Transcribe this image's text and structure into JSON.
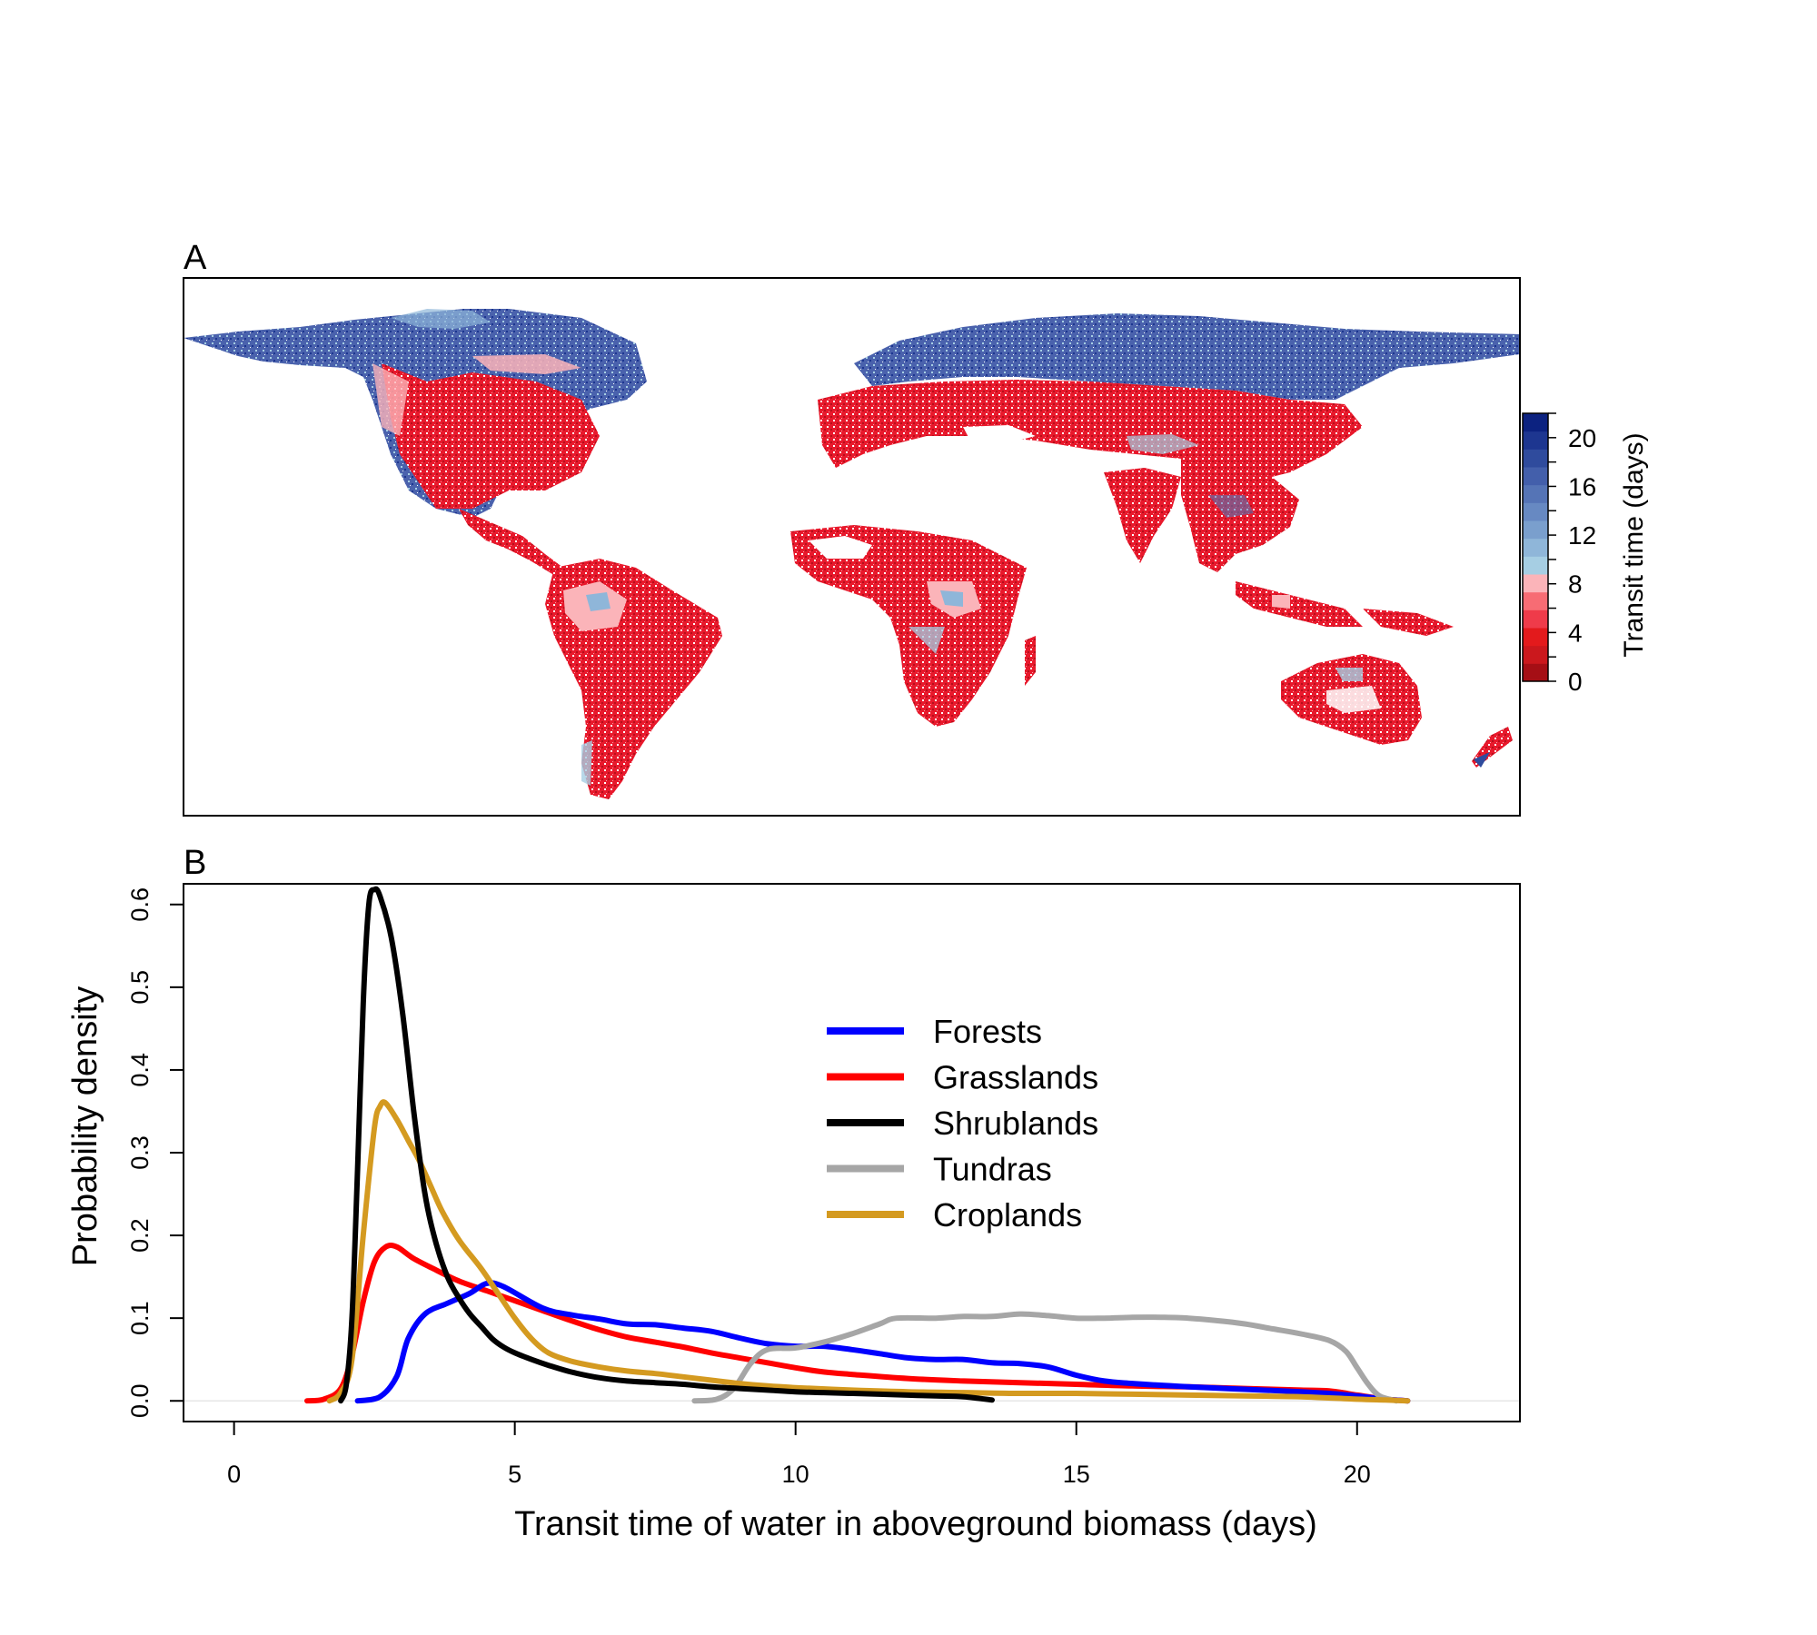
{
  "panel_a": {
    "label": "A",
    "colorbar": {
      "title": "Transit time (days)",
      "tick_labels": [
        "0",
        "4",
        "8",
        "12",
        "16",
        "20"
      ],
      "tick_values": [
        0,
        4,
        8,
        12,
        16,
        20
      ],
      "range": [
        0,
        22
      ],
      "bin_colors": [
        "#a50f15",
        "#cb181d",
        "#e31a1c",
        "#ef3b4a",
        "#f76c74",
        "#fbb4b9",
        "#a6cee3",
        "#8fb6d9",
        "#7a9fcd",
        "#6789c2",
        "#5574b6",
        "#435fab",
        "#2f4b9d",
        "#1d3690",
        "#0c2280"
      ],
      "scale_colors": {
        "low": "#a50f15",
        "mid": "#fbb4b9",
        "high": "#0c2280"
      }
    }
  },
  "panel_b": {
    "label": "B"
  },
  "chart_data": {
    "type": "line",
    "xlabel": "Transit time of water in aboveground biomass (days)",
    "ylabel": "Probability density",
    "xlim": [
      -0.9,
      22.9
    ],
    "ylim": [
      -0.025,
      0.625
    ],
    "x_ticks": [
      0,
      5,
      10,
      15,
      20
    ],
    "x_tick_labels": [
      "0",
      "5",
      "10",
      "15",
      "20"
    ],
    "y_ticks": [
      0.0,
      0.1,
      0.2,
      0.3,
      0.4,
      0.5,
      0.6
    ],
    "y_tick_labels": [
      "0.0",
      "0.1",
      "0.2",
      "0.3",
      "0.4",
      "0.5",
      "0.6"
    ],
    "legend_position": "upper-center",
    "series": [
      {
        "name": "Forests",
        "color": "#0000ff",
        "points": [
          [
            2.2,
            0.0
          ],
          [
            2.6,
            0.005
          ],
          [
            2.9,
            0.03
          ],
          [
            3.1,
            0.075
          ],
          [
            3.4,
            0.105
          ],
          [
            3.8,
            0.118
          ],
          [
            4.2,
            0.13
          ],
          [
            4.5,
            0.142
          ],
          [
            4.8,
            0.138
          ],
          [
            5.5,
            0.112
          ],
          [
            6,
            0.104
          ],
          [
            6.5,
            0.099
          ],
          [
            7,
            0.093
          ],
          [
            7.5,
            0.092
          ],
          [
            8,
            0.088
          ],
          [
            8.5,
            0.084
          ],
          [
            9,
            0.076
          ],
          [
            9.5,
            0.069
          ],
          [
            10,
            0.066
          ],
          [
            10.5,
            0.066
          ],
          [
            11,
            0.062
          ],
          [
            11.5,
            0.057
          ],
          [
            12,
            0.052
          ],
          [
            12.5,
            0.05
          ],
          [
            13,
            0.05
          ],
          [
            13.5,
            0.046
          ],
          [
            14,
            0.045
          ],
          [
            14.5,
            0.041
          ],
          [
            15,
            0.031
          ],
          [
            15.5,
            0.024
          ],
          [
            16,
            0.021
          ],
          [
            17,
            0.017
          ],
          [
            18,
            0.014
          ],
          [
            19,
            0.011
          ],
          [
            19.5,
            0.009
          ],
          [
            20,
            0.006
          ],
          [
            20.5,
            0.002
          ],
          [
            20.9,
            0.0
          ]
        ]
      },
      {
        "name": "Grasslands",
        "color": "#ff0000",
        "points": [
          [
            1.3,
            0.0
          ],
          [
            1.6,
            0.002
          ],
          [
            1.9,
            0.015
          ],
          [
            2.1,
            0.055
          ],
          [
            2.3,
            0.12
          ],
          [
            2.5,
            0.168
          ],
          [
            2.7,
            0.186
          ],
          [
            2.9,
            0.186
          ],
          [
            3.2,
            0.172
          ],
          [
            3.6,
            0.158
          ],
          [
            4,
            0.145
          ],
          [
            4.5,
            0.133
          ],
          [
            5,
            0.121
          ],
          [
            5.5,
            0.109
          ],
          [
            6,
            0.097
          ],
          [
            6.5,
            0.086
          ],
          [
            7,
            0.077
          ],
          [
            7.5,
            0.071
          ],
          [
            8,
            0.065
          ],
          [
            8.5,
            0.058
          ],
          [
            9,
            0.052
          ],
          [
            9.5,
            0.046
          ],
          [
            10,
            0.04
          ],
          [
            10.5,
            0.035
          ],
          [
            11,
            0.032
          ],
          [
            12,
            0.027
          ],
          [
            13,
            0.024
          ],
          [
            14,
            0.022
          ],
          [
            15,
            0.02
          ],
          [
            16,
            0.018
          ],
          [
            17,
            0.017
          ],
          [
            18,
            0.015
          ],
          [
            19,
            0.013
          ],
          [
            19.5,
            0.012
          ],
          [
            20,
            0.007
          ],
          [
            20.5,
            0.002
          ],
          [
            20.9,
            0.0
          ]
        ]
      },
      {
        "name": "Shrublands",
        "color": "#000000",
        "points": [
          [
            1.9,
            0.0
          ],
          [
            2.0,
            0.02
          ],
          [
            2.1,
            0.1
          ],
          [
            2.2,
            0.28
          ],
          [
            2.3,
            0.48
          ],
          [
            2.4,
            0.6
          ],
          [
            2.5,
            0.618
          ],
          [
            2.6,
            0.61
          ],
          [
            2.8,
            0.56
          ],
          [
            3,
            0.47
          ],
          [
            3.2,
            0.35
          ],
          [
            3.4,
            0.25
          ],
          [
            3.6,
            0.19
          ],
          [
            3.8,
            0.15
          ],
          [
            4,
            0.125
          ],
          [
            4.2,
            0.105
          ],
          [
            4.4,
            0.09
          ],
          [
            4.6,
            0.075
          ],
          [
            4.8,
            0.065
          ],
          [
            5,
            0.058
          ],
          [
            5.3,
            0.05
          ],
          [
            5.6,
            0.043
          ],
          [
            6,
            0.035
          ],
          [
            6.5,
            0.028
          ],
          [
            7,
            0.024
          ],
          [
            7.5,
            0.022
          ],
          [
            8,
            0.02
          ],
          [
            8.5,
            0.017
          ],
          [
            9,
            0.015
          ],
          [
            9.5,
            0.013
          ],
          [
            10,
            0.011
          ],
          [
            10.5,
            0.01
          ],
          [
            11,
            0.009
          ],
          [
            11.5,
            0.008
          ],
          [
            12,
            0.007
          ],
          [
            12.5,
            0.006
          ],
          [
            13,
            0.005
          ],
          [
            13.5,
            0.001
          ]
        ]
      },
      {
        "name": "Tundras",
        "color": "#a6a6a6",
        "points": [
          [
            8.2,
            0.0
          ],
          [
            8.6,
            0.002
          ],
          [
            8.9,
            0.015
          ],
          [
            9.2,
            0.045
          ],
          [
            9.5,
            0.062
          ],
          [
            10,
            0.064
          ],
          [
            10.5,
            0.071
          ],
          [
            11,
            0.081
          ],
          [
            11.5,
            0.093
          ],
          [
            11.8,
            0.1
          ],
          [
            12.5,
            0.1
          ],
          [
            13,
            0.102
          ],
          [
            13.5,
            0.102
          ],
          [
            14,
            0.105
          ],
          [
            14.5,
            0.103
          ],
          [
            15,
            0.1
          ],
          [
            15.5,
            0.1
          ],
          [
            16,
            0.101
          ],
          [
            16.5,
            0.101
          ],
          [
            17,
            0.1
          ],
          [
            17.5,
            0.097
          ],
          [
            18,
            0.093
          ],
          [
            18.5,
            0.087
          ],
          [
            19,
            0.081
          ],
          [
            19.5,
            0.073
          ],
          [
            19.8,
            0.06
          ],
          [
            20.0,
            0.04
          ],
          [
            20.2,
            0.02
          ],
          [
            20.4,
            0.006
          ],
          [
            20.7,
            0.0
          ]
        ]
      },
      {
        "name": "Croplands",
        "color": "#d49a20",
        "points": [
          [
            1.7,
            0.0
          ],
          [
            1.9,
            0.01
          ],
          [
            2.1,
            0.05
          ],
          [
            2.3,
            0.2
          ],
          [
            2.5,
            0.33
          ],
          [
            2.6,
            0.356
          ],
          [
            2.7,
            0.36
          ],
          [
            2.9,
            0.34
          ],
          [
            3.1,
            0.315
          ],
          [
            3.3,
            0.29
          ],
          [
            3.5,
            0.26
          ],
          [
            3.7,
            0.23
          ],
          [
            4,
            0.195
          ],
          [
            4.4,
            0.16
          ],
          [
            4.7,
            0.13
          ],
          [
            5,
            0.1
          ],
          [
            5.3,
            0.075
          ],
          [
            5.6,
            0.058
          ],
          [
            6,
            0.048
          ],
          [
            6.5,
            0.041
          ],
          [
            7,
            0.036
          ],
          [
            7.5,
            0.033
          ],
          [
            8,
            0.029
          ],
          [
            8.5,
            0.025
          ],
          [
            9,
            0.021
          ],
          [
            9.5,
            0.018
          ],
          [
            10,
            0.016
          ],
          [
            11,
            0.013
          ],
          [
            12,
            0.011
          ],
          [
            13,
            0.01
          ],
          [
            14,
            0.009
          ],
          [
            15,
            0.009
          ],
          [
            16,
            0.008
          ],
          [
            17,
            0.007
          ],
          [
            18,
            0.006
          ],
          [
            19,
            0.005
          ],
          [
            20,
            0.002
          ],
          [
            20.5,
            0.001
          ],
          [
            20.9,
            0.0
          ]
        ]
      }
    ]
  }
}
